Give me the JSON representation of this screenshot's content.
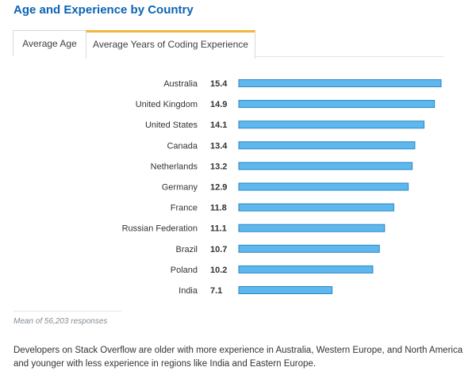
{
  "title": "Age and Experience by Country",
  "tabs": [
    {
      "label": "Average Age",
      "active": false
    },
    {
      "label": "Average Years of Coding Experience",
      "active": true
    }
  ],
  "chart_data": {
    "type": "bar",
    "orientation": "horizontal",
    "categories": [
      "Australia",
      "United Kingdom",
      "United States",
      "Canada",
      "Netherlands",
      "Germany",
      "France",
      "Russian Federation",
      "Brazil",
      "Poland",
      "India"
    ],
    "values": [
      15.4,
      14.9,
      14.1,
      13.4,
      13.2,
      12.9,
      11.8,
      11.1,
      10.7,
      10.2,
      7.1
    ],
    "value_labels": [
      "15.4",
      "14.9",
      "14.1",
      "13.4",
      "13.2",
      "12.9",
      "11.8",
      "11.1",
      "10.7",
      "10.2",
      "7.1"
    ],
    "xlim": [
      0,
      15.4
    ],
    "grid": false,
    "bar_color": "#5eb8ee",
    "bar_border_color": "#2a86c4"
  },
  "footnote": "Mean of 56,203 responses",
  "description": "Developers on Stack Overflow are older with more experience in Australia, Western Europe, and North America and younger with less experience in regions like India and Eastern Europe."
}
